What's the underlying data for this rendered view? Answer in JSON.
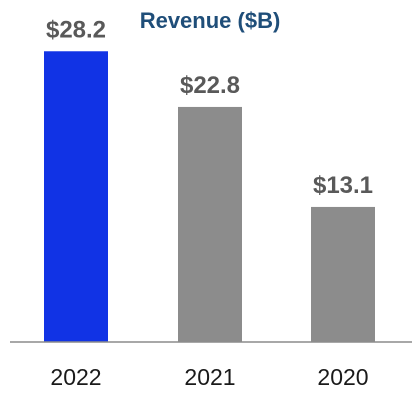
{
  "chart_data": {
    "type": "bar",
    "title": "Revenue ($B)",
    "categories": [
      "2022",
      "2021",
      "2020"
    ],
    "values": [
      28.2,
      22.8,
      13.1
    ],
    "value_labels": [
      "$28.2",
      "$22.8",
      "$13.1"
    ],
    "bar_colors": [
      "#1133E5",
      "#8C8C8C",
      "#8C8C8C"
    ],
    "title_color": "#1F4E79",
    "xlabel": "",
    "ylabel": "",
    "ylim": [
      0,
      30
    ],
    "grid": false,
    "legend": "none"
  }
}
